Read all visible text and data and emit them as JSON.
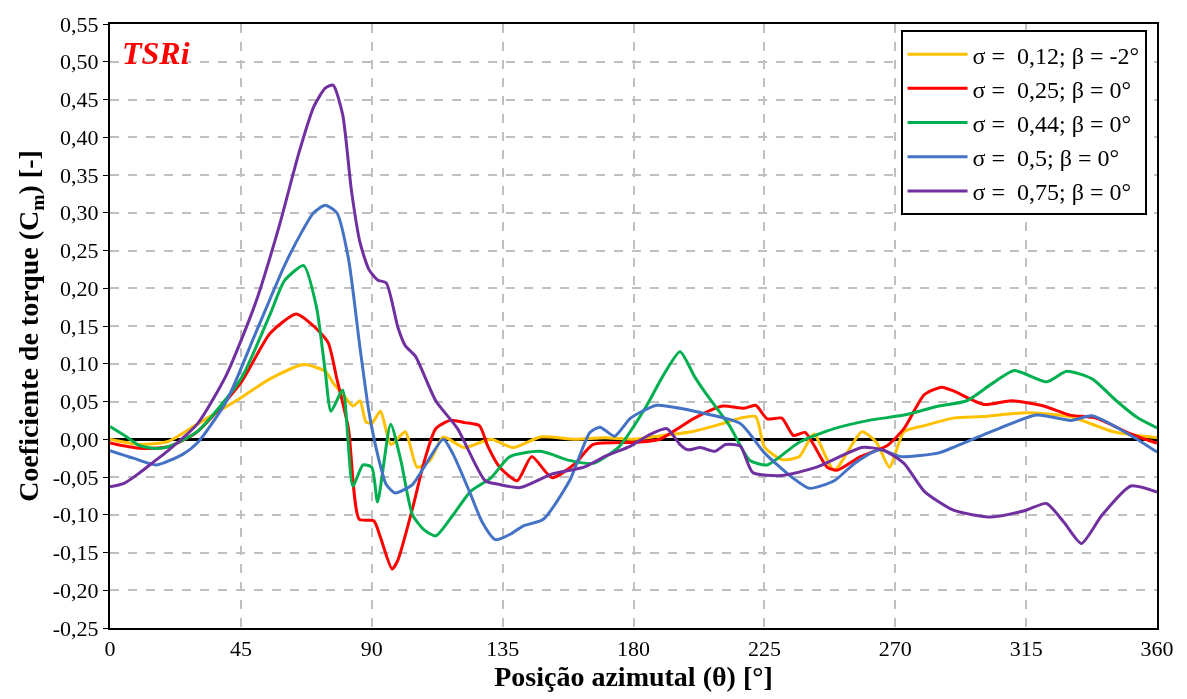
{
  "chart_data": {
    "type": "line",
    "xlabel": "Posição azimutal (θ) [°]",
    "ylabel": "Coeficiente de torque (C$_{m}$) [-]",
    "annotations": [
      "TSRi"
    ],
    "xlim": [
      0,
      360
    ],
    "xticks": [
      0,
      45,
      90,
      135,
      180,
      225,
      270,
      315,
      360
    ],
    "ylim": [
      -0.25,
      0.55
    ],
    "yticks": [
      {
        "value": -0.25,
        "label": "-0,25"
      },
      {
        "value": -0.2,
        "label": "-0,20"
      },
      {
        "value": -0.15,
        "label": "-0,15"
      },
      {
        "value": -0.1,
        "label": "-0,10"
      },
      {
        "value": -0.05,
        "label": "-0,05"
      },
      {
        "value": 0,
        "label": "0,00"
      },
      {
        "value": 0.05,
        "label": "0,05"
      },
      {
        "value": 0.1,
        "label": "0,10"
      },
      {
        "value": 0.15,
        "label": "0,15"
      },
      {
        "value": 0.2,
        "label": "0,20"
      },
      {
        "value": 0.25,
        "label": "0,25"
      },
      {
        "value": 0.3,
        "label": "0,30"
      },
      {
        "value": 0.35,
        "label": "0,35"
      },
      {
        "value": 0.4,
        "label": "0,40"
      },
      {
        "value": 0.45,
        "label": "0,45"
      },
      {
        "value": 0.5,
        "label": "0,50"
      },
      {
        "value": 0.55,
        "label": "0,55"
      }
    ],
    "grid": true,
    "legend": "top right",
    "line_style": "solid",
    "marker": "none",
    "series": [
      {
        "name": "σ =  0,12; β = -2°",
        "color": "#ffc000",
        "x": [
          0,
          10,
          20,
          30,
          45,
          55,
          66.6,
          74,
          77,
          80,
          83.5,
          86,
          88,
          90,
          93,
          96.6,
          101.5,
          105.6,
          110,
          114.6,
          121.8,
          131,
          138.6,
          148,
          160,
          170,
          180,
          190,
          200,
          210,
          216.7,
          222,
          225,
          231,
          237,
          242,
          249,
          258.5,
          263.5,
          268,
          273,
          280,
          290,
          300,
          315,
          330,
          345,
          360
        ],
        "values": [
          0,
          -0.007,
          -0.003,
          0.02,
          0.055,
          0.08,
          0.099,
          0.09,
          0.073,
          0.06,
          0.044,
          0.051,
          0.023,
          0.021,
          0.037,
          -0.007,
          0.01,
          -0.037,
          -0.028,
          0.003,
          -0.011,
          0,
          -0.011,
          0.003,
          0,
          0.002,
          0,
          0.005,
          0.01,
          0.02,
          0.028,
          0.03,
          -0.01,
          -0.027,
          -0.023,
          0.007,
          -0.041,
          0.01,
          -0.004,
          -0.037,
          0.01,
          0.018,
          0.028,
          0.03,
          0.035,
          0.03,
          0.01,
          0.002
        ]
      },
      {
        "name": "σ =  0,25; β = 0°",
        "color": "#ff0000",
        "x": [
          0,
          10,
          20,
          30,
          45,
          55,
          64,
          70,
          75,
          78,
          82,
          85.7,
          90.7,
          93,
          97,
          99,
          104,
          108,
          112,
          117,
          122,
          127,
          130,
          134,
          140,
          145,
          152,
          160,
          166,
          181,
          189,
          201,
          210.6,
          218,
          222,
          226,
          231,
          235,
          239,
          246.6,
          250,
          258,
          267,
          273,
          280,
          286,
          290,
          300.6,
          310,
          321,
          330,
          339,
          351,
          359,
          360
        ],
        "values": [
          -0.005,
          -0.012,
          -0.01,
          0.01,
          0.075,
          0.14,
          0.166,
          0.15,
          0.128,
          0.08,
          0.014,
          -0.106,
          -0.108,
          -0.13,
          -0.172,
          -0.16,
          -0.092,
          -0.03,
          0.014,
          0.025,
          0.022,
          0.018,
          -0.01,
          -0.037,
          -0.055,
          -0.023,
          -0.051,
          -0.032,
          -0.007,
          -0.004,
          0,
          0.028,
          0.044,
          0.041,
          0.045,
          0.027,
          0.028,
          0.005,
          0.009,
          -0.037,
          -0.041,
          -0.023,
          -0.009,
          0.014,
          0.059,
          0.069,
          0.064,
          0.046,
          0.051,
          0.044,
          0.032,
          0.028,
          0.007,
          -0.004,
          -0.005
        ]
      },
      {
        "name": "σ =  0,44; β = 0°",
        "color": "#00b050",
        "x": [
          0,
          5,
          10,
          15,
          20,
          30,
          45,
          55,
          60,
          66.6,
          71,
          74,
          76,
          80,
          83.5,
          87,
          90,
          92,
          96.5,
          100,
          104,
          108,
          112,
          118,
          124,
          131,
          137.5,
          148,
          158,
          166,
          175,
          184,
          190,
          196,
          201,
          205,
          213,
          220,
          226,
          237,
          249,
          261,
          273,
          285,
          294.6,
          303,
          311,
          322,
          329,
          337.7,
          346,
          353.5,
          360
        ],
        "values": [
          0.017,
          0.005,
          -0.008,
          -0.012,
          -0.01,
          0.01,
          0.08,
          0.165,
          0.21,
          0.23,
          0.175,
          0.09,
          0.037,
          0.065,
          -0.062,
          -0.034,
          -0.037,
          -0.083,
          0.02,
          -0.028,
          -0.1,
          -0.12,
          -0.128,
          -0.1,
          -0.069,
          -0.051,
          -0.023,
          -0.016,
          -0.028,
          -0.032,
          -0.01,
          0.041,
          0.083,
          0.116,
          0.083,
          0.06,
          0.018,
          -0.028,
          -0.034,
          -0.004,
          0.014,
          0.025,
          0.032,
          0.044,
          0.051,
          0.073,
          0.091,
          0.076,
          0.09,
          0.08,
          0.051,
          0.028,
          0.015
        ]
      },
      {
        "name": "σ =  0,5; β = 0°",
        "color": "#4472c4",
        "x": [
          0,
          8,
          16,
          25,
          30,
          40,
          50,
          60,
          66,
          70,
          74,
          78,
          82,
          86,
          89,
          92,
          95,
          98,
          104,
          108,
          114.6,
          118,
          124,
          128,
          132.5,
          138,
          142,
          149,
          158,
          165,
          168.5,
          173.5,
          179,
          188,
          196,
          201,
          216.7,
          225,
          234.7,
          240.5,
          249,
          256,
          264.6,
          272,
          285,
          291,
          303,
          318.6,
          330.5,
          337.7,
          351,
          360
        ],
        "values": [
          -0.015,
          -0.025,
          -0.034,
          -0.02,
          -0.005,
          0.05,
          0.14,
          0.23,
          0.275,
          0.3,
          0.31,
          0.3,
          0.239,
          0.12,
          0.037,
          -0.02,
          -0.06,
          -0.071,
          -0.06,
          -0.037,
          0,
          -0.02,
          -0.073,
          -0.11,
          -0.133,
          -0.125,
          -0.115,
          -0.106,
          -0.055,
          0.009,
          0.016,
          0.004,
          0.028,
          0.045,
          0.041,
          0.037,
          0.021,
          -0.018,
          -0.051,
          -0.065,
          -0.055,
          -0.032,
          -0.014,
          -0.023,
          -0.018,
          -0.009,
          0.01,
          0.032,
          0.025,
          0.031,
          0.005,
          -0.017
        ]
      },
      {
        "name": "σ =  0,75; β = 0°",
        "color": "#7030a0",
        "x": [
          0,
          5,
          10,
          15,
          20,
          30,
          40,
          50,
          58,
          65,
          70,
          74,
          76.7,
          80,
          83,
          86,
          89,
          92,
          95,
          99,
          101.5,
          105,
          112,
          119.5,
          129,
          134,
          141,
          152,
          163,
          170,
          179,
          185,
          191.5,
          196,
          198.7,
          203,
          208,
          211.7,
          216.7,
          221,
          231,
          243,
          258.5,
          265.7,
          273,
          280,
          290,
          303,
          315,
          322,
          328,
          334,
          341,
          351,
          360
        ],
        "values": [
          -0.063,
          -0.058,
          -0.045,
          -0.03,
          -0.015,
          0.02,
          0.085,
          0.18,
          0.28,
          0.38,
          0.44,
          0.465,
          0.469,
          0.43,
          0.33,
          0.26,
          0.225,
          0.211,
          0.207,
          0.148,
          0.124,
          0.11,
          0.051,
          0.014,
          -0.055,
          -0.06,
          -0.064,
          -0.046,
          -0.037,
          -0.023,
          -0.009,
          0.005,
          0.014,
          -0.007,
          -0.014,
          -0.011,
          -0.016,
          -0.007,
          -0.009,
          -0.044,
          -0.048,
          -0.037,
          -0.011,
          -0.014,
          -0.032,
          -0.069,
          -0.094,
          -0.103,
          -0.094,
          -0.085,
          -0.11,
          -0.138,
          -0.101,
          -0.062,
          -0.07
        ]
      }
    ]
  }
}
